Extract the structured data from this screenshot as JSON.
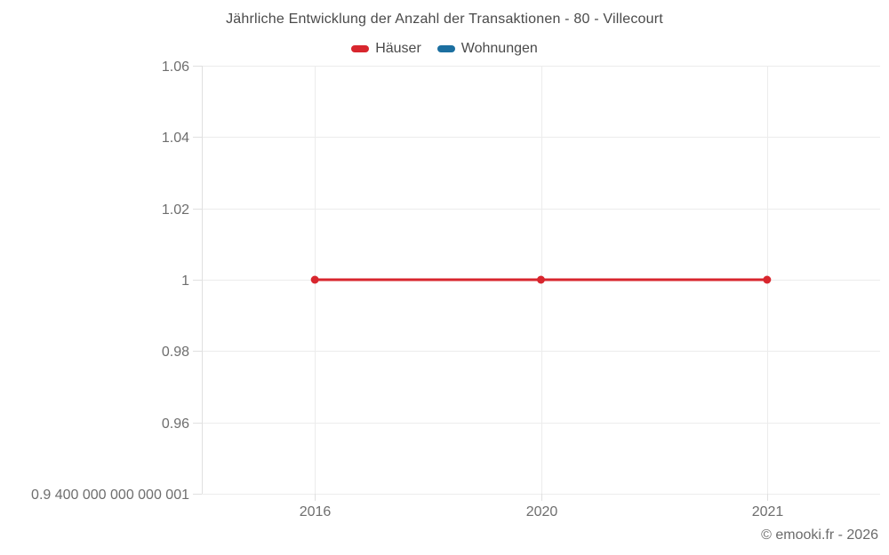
{
  "title": "Jährliche Entwicklung der Anzahl der Transaktionen - 80 - Villecourt",
  "footer": "© emooki.fr - 2026",
  "colors": {
    "hauser_red": "#d8262e",
    "wohnungen_blue": "#1c6fa0",
    "gridline": "#ececec",
    "axis_line": "#e0e0e0",
    "tick_label": "#6e6e6e",
    "title_text": "#4a4a4a"
  },
  "chart_data": {
    "type": "line",
    "title": "Jährliche Entwicklung der Anzahl der Transaktionen - 80 - Villecourt",
    "xlabel": "",
    "ylabel": "",
    "categories": [
      "2016",
      "2020",
      "2021"
    ],
    "series": [
      {
        "name": "Häuser",
        "color": "#d8262e",
        "values": [
          1,
          1,
          1
        ]
      },
      {
        "name": "Wohnungen",
        "color": "#1c6fa0",
        "values": []
      }
    ],
    "ylim": [
      0.9400000000000001,
      1.06
    ],
    "yticks": [
      {
        "value": 1.06,
        "label": "1.06"
      },
      {
        "value": 1.04,
        "label": "1.04"
      },
      {
        "value": 1.02,
        "label": "1.02"
      },
      {
        "value": 1.0,
        "label": "1"
      },
      {
        "value": 0.98,
        "label": "0.98"
      },
      {
        "value": 0.96,
        "label": "0.96"
      },
      {
        "value": 0.9400000000000001,
        "label": "0.9 400 000 000 000 001"
      }
    ],
    "grid": true,
    "legend_position": "top"
  }
}
